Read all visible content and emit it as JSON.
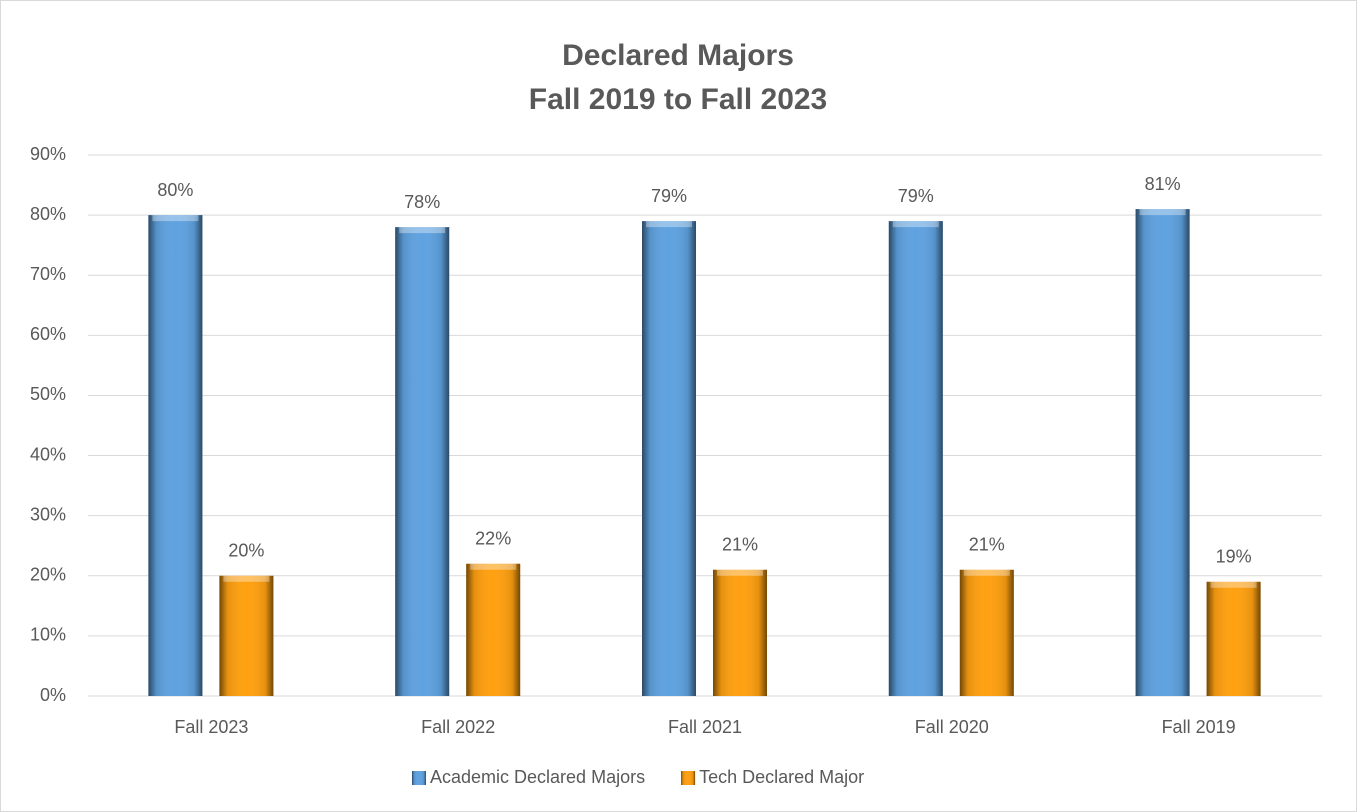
{
  "chart_data": {
    "type": "bar",
    "title": "Declared Majors",
    "subtitle": "Fall 2019 to Fall 2023",
    "categories": [
      "Fall 2023",
      "Fall 2022",
      "Fall 2021",
      "Fall 2020",
      "Fall 2019"
    ],
    "series": [
      {
        "name": "Academic Declared Majors",
        "color": "#5fa2e0",
        "values": [
          80,
          78,
          79,
          79,
          81
        ],
        "value_labels": [
          "80%",
          "78%",
          "79%",
          "79%",
          "81%"
        ]
      },
      {
        "name": "Tech Declared Major",
        "color": "#ffa010",
        "values": [
          20,
          22,
          21,
          21,
          19
        ],
        "value_labels": [
          "20%",
          "22%",
          "21%",
          "21%",
          "19%"
        ]
      }
    ],
    "ylim": [
      0,
      90
    ],
    "yticks": [
      {
        "value": 0,
        "label": "0%"
      },
      {
        "value": 10,
        "label": "10%"
      },
      {
        "value": 20,
        "label": "20%"
      },
      {
        "value": 30,
        "label": "30%"
      },
      {
        "value": 40,
        "label": "40%"
      },
      {
        "value": 50,
        "label": "50%"
      },
      {
        "value": 60,
        "label": "60%"
      },
      {
        "value": 70,
        "label": "70%"
      },
      {
        "value": 80,
        "label": "80%"
      },
      {
        "value": 90,
        "label": "90%"
      }
    ],
    "grid": true,
    "legend": "bottom"
  }
}
